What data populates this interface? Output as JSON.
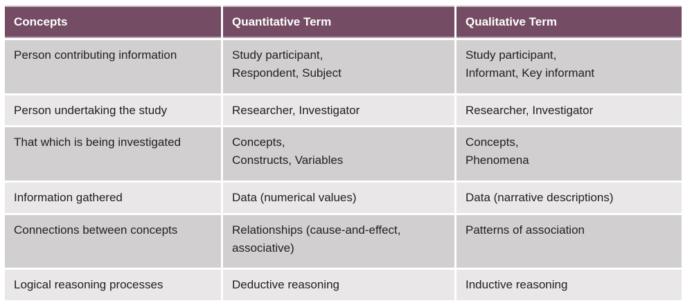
{
  "colors": {
    "header_bg": "#744C63",
    "header_text": "#FFFFFF",
    "header_border_top": "#CFC0CB",
    "header_border_bottom": "#B1A0AD",
    "row_band_dark": "#D2CFD0",
    "row_band_light": "#E9E7E8",
    "body_text": "#212121",
    "page_bg": "#FFFFFF"
  },
  "table": {
    "headers": [
      "Concepts",
      "Quantitative Term",
      "Qualitative Term"
    ],
    "rows": [
      {
        "cells": [
          [
            "Person contributing information"
          ],
          [
            "Study participant,",
            "Respondent, Subject"
          ],
          [
            "Study participant,",
            "Informant, Key informant"
          ]
        ]
      },
      {
        "cells": [
          [
            "Person undertaking the study"
          ],
          [
            "Researcher, Investigator"
          ],
          [
            "Researcher, Investigator"
          ]
        ]
      },
      {
        "cells": [
          [
            "That which is being investigated"
          ],
          [
            "Concepts,",
            "Constructs, Variables"
          ],
          [
            "Concepts,",
            "Phenomena"
          ]
        ]
      },
      {
        "cells": [
          [
            "Information gathered"
          ],
          [
            "Data (numerical values)"
          ],
          [
            "Data (narrative descriptions)"
          ]
        ]
      },
      {
        "cells": [
          [
            "Connections between concepts"
          ],
          [
            "Relationships (cause-and-effect,",
            "associative)"
          ],
          [
            "Patterns of association"
          ]
        ]
      },
      {
        "cells": [
          [
            "Logical reasoning processes"
          ],
          [
            "Deductive reasoning"
          ],
          [
            "Inductive reasoning"
          ]
        ]
      }
    ]
  }
}
